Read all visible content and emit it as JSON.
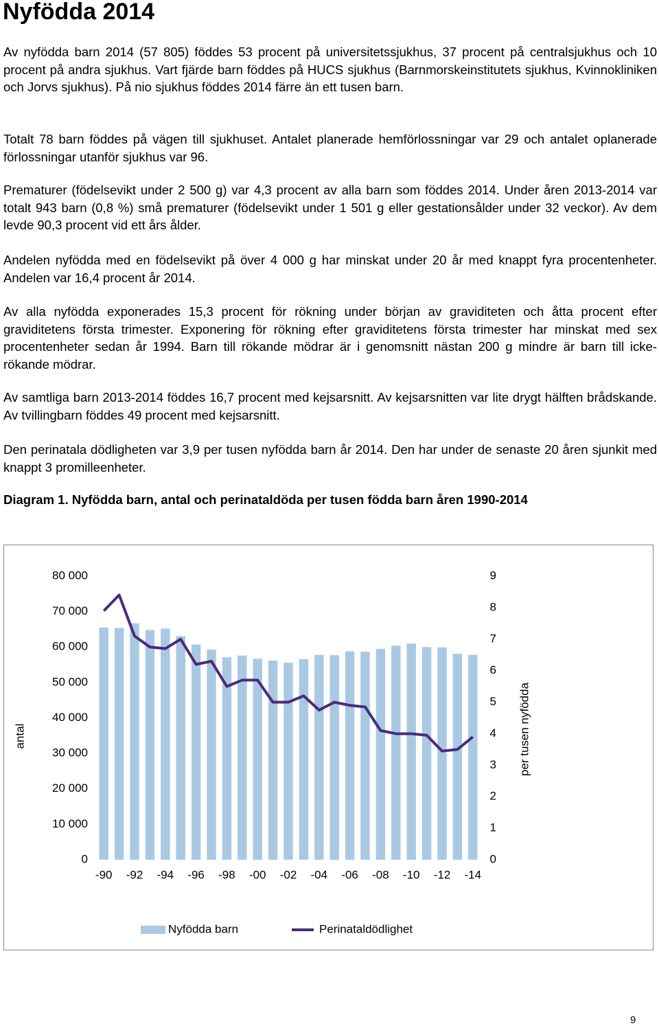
{
  "header": {
    "title": "Nyfödda 2014"
  },
  "paragraphs": [
    "Av nyfödda barn 2014 (57 805) föddes 53 procent på universitetssjukhus, 37 procent på centralsjukhus och 10 procent på andra sjukhus. Vart fjärde barn föddes på HUCS sjukhus (Barnmorskeinstitutets sjukhus, Kvinnokliniken och Jorvs sjukhus). På nio sjukhus föddes 2014 färre än ett tusen barn.",
    "Totalt 78 barn föddes på vägen till sjukhuset. Antalet planerade hemförlossningar var 29 och antalet oplanerade förlossningar utanför sjukhus var 96.",
    "Prematurer (födelsevikt under 2 500 g) var 4,3 procent av alla barn som föddes 2014. Under åren 2013-2014 var totalt 943 barn (0,8 %) små prematurer (födelsevikt under 1 501 g eller gestationsålder under 32 veckor). Av dem levde 90,3 procent vid ett års ålder.",
    "Andelen nyfödda med en födelsevikt på över 4 000 g har minskat under 20 år med knappt fyra procentenheter. Andelen var 16,4 procent år 2014.",
    "Av alla nyfödda exponerades 15,3 procent för rökning under början av graviditeten och åtta procent efter graviditetens första trimester. Exponering för rökning efter graviditetens första trimester har minskat med sex procentenheter sedan år 1994. Barn till rökande mödrar är i genomsnitt nästan 200 g mindre är barn till icke-rökande mödrar.",
    "Av samtliga barn 2013-2014 föddes 16,7 procent med kejsarsnitt. Av kejsarsnitten var lite drygt hälften brådskande. Av tvillingbarn föddes 49 procent med kejsarsnitt.",
    "Den perinatala dödligheten var 3,9 per tusen nyfödda barn år 2014. Den har under de senaste 20 åren sjunkit med knappt 3 promilleenheter."
  ],
  "diagram_caption": "Diagram 1. Nyfödda barn, antal och perinataldöda per tusen födda barn åren 1990-2014",
  "chart_data": {
    "type": "bar",
    "categories": [
      "-90",
      null,
      "-92",
      null,
      "-94",
      null,
      "-96",
      null,
      "-98",
      null,
      "-00",
      null,
      "-02",
      null,
      "-04",
      null,
      "-06",
      null,
      "-08",
      null,
      "-10",
      null,
      "-12",
      null,
      "-14"
    ],
    "y_label": "antal",
    "y2_label": "per tusen nyfödda",
    "ylim": [
      0,
      80000
    ],
    "yticks": [
      0,
      {
        "value": 10000,
        "label": "10 000"
      },
      {
        "value": 20000,
        "label": "20 000"
      },
      {
        "value": 30000,
        "label": "30 000"
      },
      {
        "value": 40000,
        "label": "40 000"
      },
      {
        "value": 50000,
        "label": "50 000"
      },
      {
        "value": 60000,
        "label": "60 000"
      },
      {
        "value": 70000,
        "label": "70 000"
      },
      {
        "value": 80000,
        "label": "80 000"
      }
    ],
    "y2lim": [
      0,
      9
    ],
    "y2ticks": [
      0,
      1,
      2,
      3,
      4,
      5,
      6,
      7,
      8,
      9
    ],
    "grid": false,
    "legend": "bottom",
    "series": [
      {
        "name": "Nyfödda barn",
        "type": "bar",
        "color": "#a9c9e3",
        "values": [
          65500,
          65400,
          66700,
          64800,
          65200,
          63100,
          60700,
          59300,
          57100,
          57600,
          56700,
          56200,
          55600,
          56600,
          57800,
          57700,
          58800,
          58700,
          59500,
          60400,
          61000,
          60000,
          59900,
          58100,
          57805
        ]
      },
      {
        "name": "Perinataldödlighet",
        "type": "line",
        "axis": "y2",
        "color": "#4b2a7a",
        "values": [
          7.9,
          8.4,
          7.1,
          6.75,
          6.7,
          7.0,
          6.2,
          6.3,
          5.5,
          5.7,
          5.7,
          5.0,
          5.0,
          5.2,
          4.75,
          5.0,
          4.9,
          4.85,
          4.1,
          4.0,
          4.0,
          3.95,
          3.45,
          3.5,
          3.9
        ]
      }
    ]
  },
  "page_number": "9"
}
